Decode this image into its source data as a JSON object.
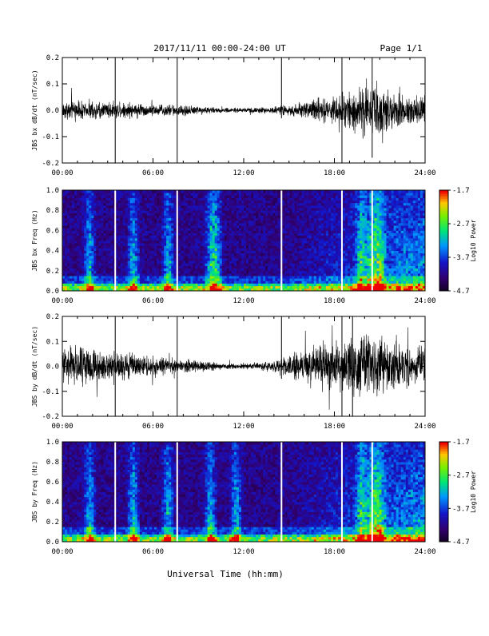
{
  "header": {
    "title": "2017/11/11  00:00-24:00 UT",
    "page": "Page 1/1"
  },
  "xlabel": "Universal Time (hh:mm)",
  "chart_data": [
    {
      "type": "line",
      "ylabel": "JBS bx dB/dt (nT/sec)",
      "xlim": [
        0,
        24
      ],
      "ylim": [
        -0.2,
        0.2
      ],
      "x_ticks": [
        "00:00",
        "06:00",
        "12:00",
        "18:00",
        "24:00"
      ],
      "y_ticks": [
        "-0.2",
        "-0.1",
        "0.0",
        "0.1",
        "0.2"
      ],
      "envelope": {
        "x": [
          0,
          1,
          2,
          3,
          4,
          5,
          6,
          7,
          8,
          9,
          10,
          11,
          12,
          13,
          14,
          15,
          16,
          17,
          18,
          19,
          20,
          21,
          22,
          23,
          24
        ],
        "amplitude": [
          0.025,
          0.035,
          0.03,
          0.03,
          0.03,
          0.025,
          0.02,
          0.02,
          0.02,
          0.015,
          0.01,
          0.008,
          0.008,
          0.01,
          0.012,
          0.02,
          0.03,
          0.04,
          0.05,
          0.06,
          0.09,
          0.09,
          0.06,
          0.05,
          0.05
        ]
      },
      "spikes": [
        {
          "x": 3.5,
          "y": [
            -0.2,
            0.2
          ]
        },
        {
          "x": 7.6,
          "y": [
            -0.2,
            0.2
          ]
        },
        {
          "x": 14.5,
          "y": [
            -0.03,
            0.2
          ]
        },
        {
          "x": 18.5,
          "y": [
            -0.2,
            0.2
          ]
        },
        {
          "x": 20.5,
          "y": [
            -0.18,
            0.2
          ]
        }
      ]
    },
    {
      "type": "heatmap",
      "ylabel": "JBS bx Freq (Hz)",
      "xlim": [
        0,
        24
      ],
      "ylim": [
        0,
        1.0
      ],
      "x_ticks": [
        "00:00",
        "06:00",
        "12:00",
        "18:00",
        "24:00"
      ],
      "y_ticks": [
        "0.0",
        "0.2",
        "0.4",
        "0.6",
        "0.8",
        "1.0"
      ],
      "colorbar": {
        "label": "Log10 Power",
        "ticks": [
          "-1.7",
          "-2.7",
          "-3.7",
          "-4.7"
        ],
        "range": [
          -4.7,
          -1.7
        ]
      },
      "data_gaps_hours": [
        3.5,
        7.6,
        14.5,
        18.5,
        20.5
      ],
      "enhanced_bands_hours": [
        1.8,
        4.7,
        7.0,
        9.8,
        10.2,
        19.8,
        20.5,
        21.0
      ]
    },
    {
      "type": "line",
      "ylabel": "JBS by dB/dt (nT/sec)",
      "xlim": [
        0,
        24
      ],
      "ylim": [
        -0.2,
        0.2
      ],
      "x_ticks": [
        "00:00",
        "06:00",
        "12:00",
        "18:00",
        "24:00"
      ],
      "y_ticks": [
        "-0.2",
        "-0.1",
        "0.0",
        "0.1",
        "0.2"
      ],
      "envelope": {
        "x": [
          0,
          1,
          2,
          3,
          4,
          5,
          6,
          7,
          8,
          9,
          10,
          11,
          12,
          13,
          14,
          15,
          16,
          17,
          18,
          19,
          20,
          21,
          22,
          23,
          24
        ],
        "amplitude": [
          0.07,
          0.08,
          0.06,
          0.05,
          0.05,
          0.04,
          0.035,
          0.03,
          0.025,
          0.02,
          0.015,
          0.01,
          0.01,
          0.015,
          0.02,
          0.04,
          0.06,
          0.08,
          0.09,
          0.1,
          0.11,
          0.1,
          0.09,
          0.08,
          0.08
        ]
      },
      "spikes": [
        {
          "x": 3.5,
          "y": [
            -0.2,
            0.2
          ]
        },
        {
          "x": 7.6,
          "y": [
            -0.2,
            0.2
          ]
        },
        {
          "x": 14.5,
          "y": [
            -0.05,
            0.2
          ]
        },
        {
          "x": 18.5,
          "y": [
            -0.2,
            0.2
          ]
        },
        {
          "x": 19.2,
          "y": [
            -0.2,
            0.2
          ]
        }
      ]
    },
    {
      "type": "heatmap",
      "ylabel": "JBS by Freq (Hz)",
      "xlim": [
        0,
        24
      ],
      "ylim": [
        0,
        1.0
      ],
      "x_ticks": [
        "00:00",
        "06:00",
        "12:00",
        "18:00",
        "24:00"
      ],
      "y_ticks": [
        "0.0",
        "0.2",
        "0.4",
        "0.6",
        "0.8",
        "1.0"
      ],
      "colorbar": {
        "label": "Log10 Power",
        "ticks": [
          "-1.7",
          "-2.7",
          "-3.7",
          "-4.7"
        ],
        "range": [
          -4.7,
          -1.7
        ]
      },
      "data_gaps_hours": [
        3.5,
        7.6,
        14.5,
        18.5,
        20.5
      ],
      "enhanced_bands_hours": [
        1.8,
        4.7,
        7.0,
        9.8,
        11.5,
        19.8,
        20.5,
        21.0
      ]
    }
  ]
}
